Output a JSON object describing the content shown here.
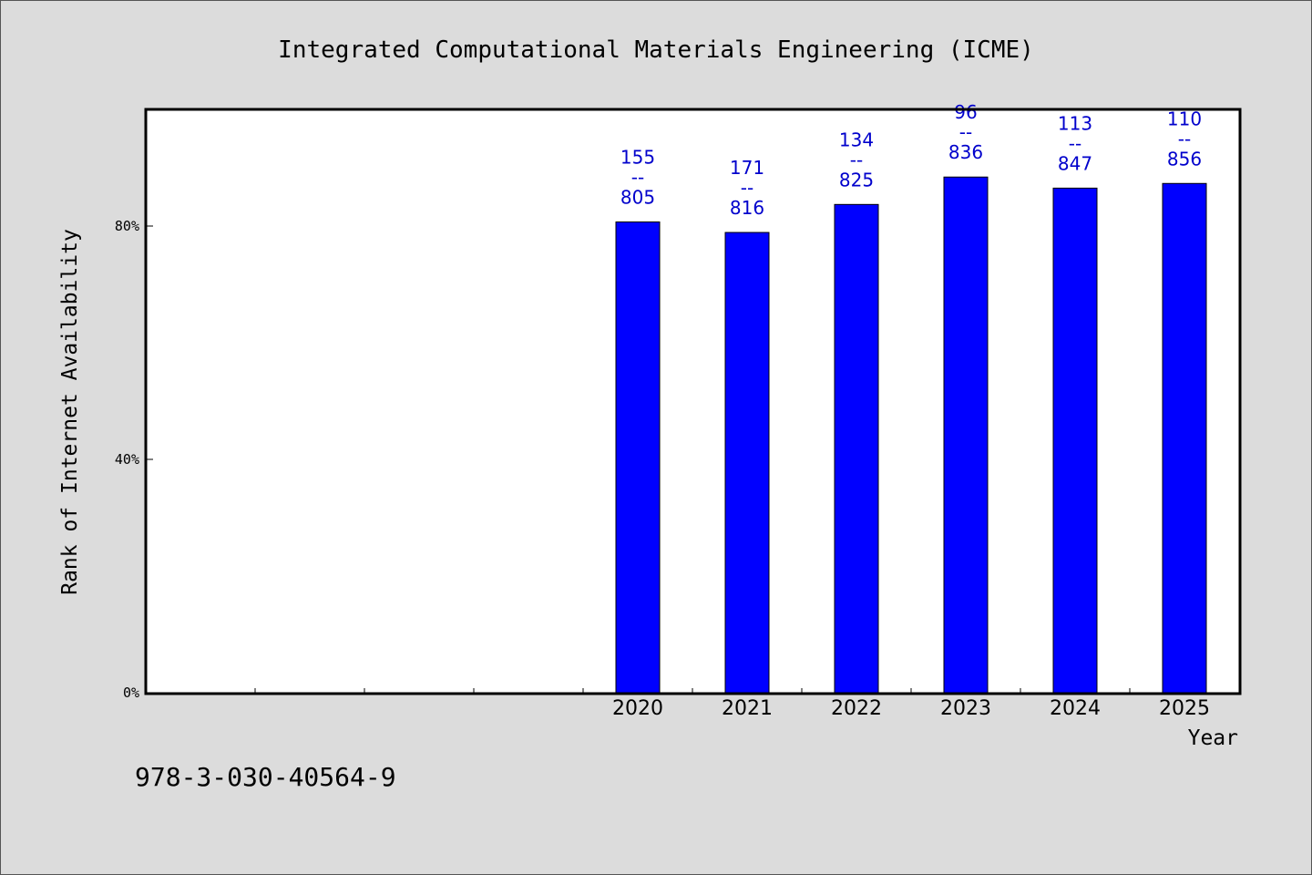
{
  "chart_data": {
    "type": "bar",
    "title": "Integrated Computational Materials Engineering (ICME)",
    "xlabel": "Year",
    "ylabel": "Rank of Internet Availability",
    "ylim": [
      0,
      1.0
    ],
    "yticks": [
      {
        "value": 0,
        "label": "0%"
      },
      {
        "value": 0.4,
        "label": "40%"
      },
      {
        "value": 0.8,
        "label": "80%"
      }
    ],
    "categories": [
      "",
      "",
      "",
      "",
      "2020",
      "2021",
      "2022",
      "2023",
      "2024",
      "2025"
    ],
    "series": [
      {
        "color": "#0000ff",
        "values": [
          null,
          null,
          null,
          null,
          0.807,
          0.789,
          0.837,
          0.884,
          0.865,
          0.873
        ],
        "data_labels": [
          null,
          null,
          null,
          null,
          [
            "155",
            "--",
            "805"
          ],
          [
            "171",
            "--",
            "816"
          ],
          [
            "134",
            "--",
            "825"
          ],
          [
            "96",
            "--",
            "836"
          ],
          [
            "113",
            "--",
            "847"
          ],
          [
            "110",
            "--",
            "856"
          ]
        ]
      }
    ],
    "grid": false,
    "legend": "none"
  },
  "footer": {
    "isbn": "978-3-030-40564-9"
  }
}
